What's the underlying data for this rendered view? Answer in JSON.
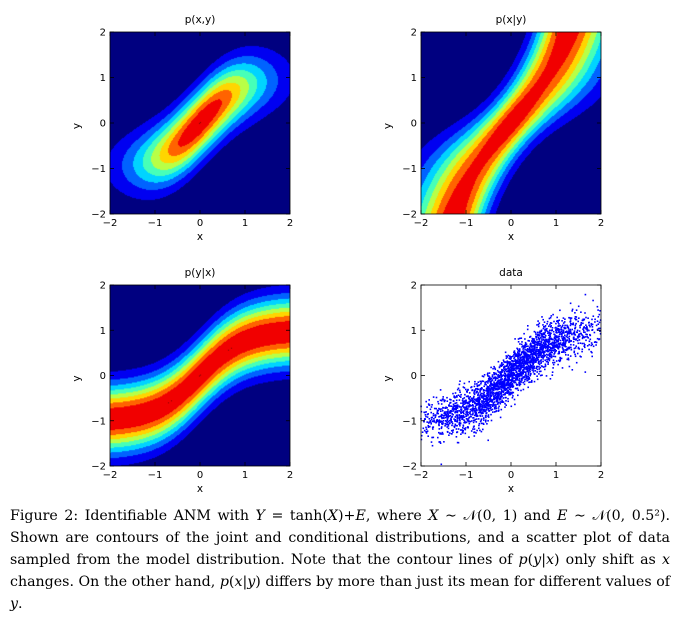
{
  "chart_data": [
    {
      "type": "heatmap",
      "title": "p(x,y)",
      "xlabel": "x",
      "ylabel": "y",
      "xlim": [
        -2,
        2
      ],
      "ylim": [
        -2,
        2
      ],
      "xticks": [
        "−2",
        "−1",
        "0",
        "1",
        "2"
      ],
      "yticks": [
        "−2",
        "−1",
        "0",
        "1",
        "2"
      ],
      "colormap": "jet",
      "background": "#00008f"
    },
    {
      "type": "heatmap",
      "title": "p(x|y)",
      "xlabel": "x",
      "ylabel": "y",
      "xlim": [
        -2,
        2
      ],
      "ylim": [
        -2,
        2
      ],
      "xticks": [
        "−2",
        "−1",
        "0",
        "1",
        "2"
      ],
      "yticks": [
        "−2",
        "−1",
        "0",
        "1",
        "2"
      ],
      "colormap": "jet",
      "background": "#00008f"
    },
    {
      "type": "heatmap",
      "title": "p(y|x)",
      "xlabel": "x",
      "ylabel": "y",
      "xlim": [
        -2,
        2
      ],
      "ylim": [
        -2,
        2
      ],
      "xticks": [
        "−2",
        "−1",
        "0",
        "1",
        "2"
      ],
      "yticks": [
        "−2",
        "−1",
        "0",
        "1",
        "2"
      ],
      "colormap": "jet",
      "background": "#00008f"
    },
    {
      "type": "scatter",
      "title": "data",
      "xlabel": "x",
      "ylabel": "y",
      "xlim": [
        -2,
        2
      ],
      "ylim": [
        -2,
        2
      ],
      "xticks": [
        "−2",
        "−1",
        "0",
        "1",
        "2"
      ],
      "yticks": [
        "−2",
        "−1",
        "0",
        "1",
        "2"
      ],
      "color": "#0000ff"
    }
  ],
  "caption": {
    "p1": "Figure 2: Identifiable ANM with ",
    "m1": "Y",
    "p2": " = tanh(",
    "m2": "X",
    "p3": ")+",
    "m3": "E",
    "p4": ", where ",
    "m4": "X",
    "p5": " ∼ 𝒩(0, 1) and ",
    "m5": "E",
    "p6": " ∼ 𝒩(0, 0.5²). Shown are contours of the joint and conditional distributions, and a scatter plot of data sampled from the model distribution. Note that the contour lines of ",
    "m6": "p",
    "p7": "(",
    "m7": "y",
    "p8": "|",
    "m8": "x",
    "p9": ") only shift as ",
    "m9": "x",
    "p10": " changes. On the other hand, ",
    "m10": "p",
    "p11": "(",
    "m11": "x",
    "p12": "|",
    "m12": "y",
    "p13": ") differs by more than just its mean for different values of ",
    "m13": "y",
    "p14": "."
  }
}
